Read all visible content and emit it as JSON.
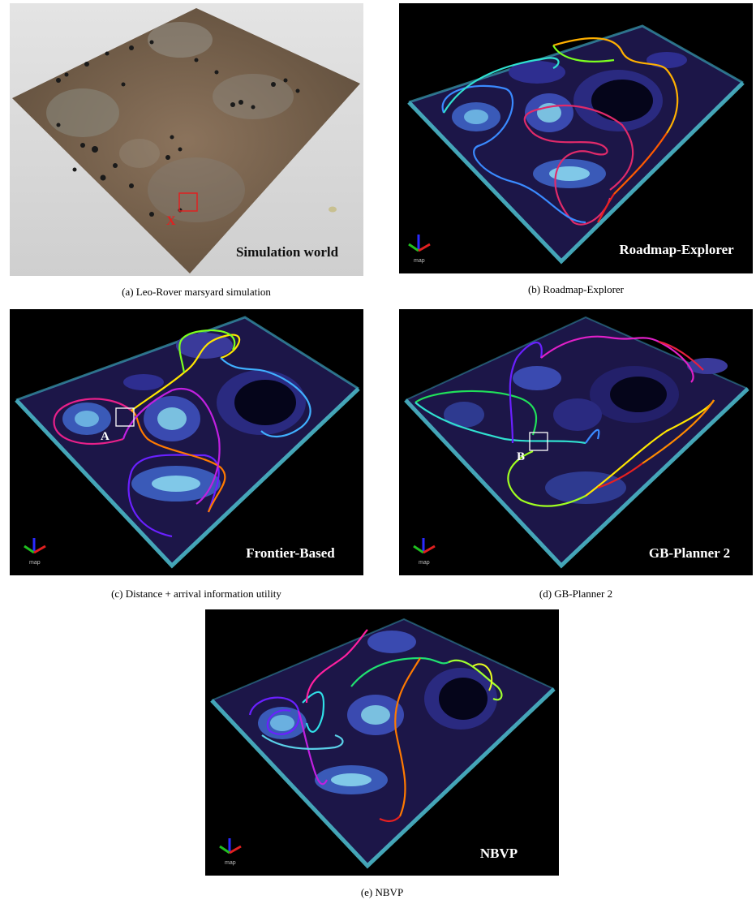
{
  "figure": {
    "panels": [
      {
        "id": "a",
        "title": "Simulation world",
        "caption": "(a) Leo-Rover marsyard simulation",
        "marker_label": "X",
        "colors": {
          "sky": "#d9d9d9",
          "terrain": "#7a6450",
          "marker": "#e02020"
        }
      },
      {
        "id": "b",
        "title": "Roadmap-Explorer",
        "caption": "(b) Roadmap-Explorer",
        "axis_label": "map"
      },
      {
        "id": "c",
        "title": "Frontier-Based",
        "caption": "(c) Distance + arrival information utility",
        "axis_label": "map",
        "marker_label": "A"
      },
      {
        "id": "d",
        "title": "GB-Planner 2",
        "caption": "(d) GB-Planner 2",
        "axis_label": "map",
        "marker_label": "B"
      },
      {
        "id": "e",
        "title": "NBVP",
        "caption": "(e) NBVP",
        "axis_label": "map"
      }
    ],
    "colors": {
      "map_bg": "#000000",
      "grid_base": "#1a1440",
      "grid_mid": "#3a3a9a",
      "grid_hi": "#5ec8c8",
      "trajectory_gradient": [
        "#e82020",
        "#ff8a00",
        "#ffe600",
        "#7cff20",
        "#30e0d0",
        "#3a6aff",
        "#8a20ff",
        "#ff20c0"
      ]
    }
  }
}
